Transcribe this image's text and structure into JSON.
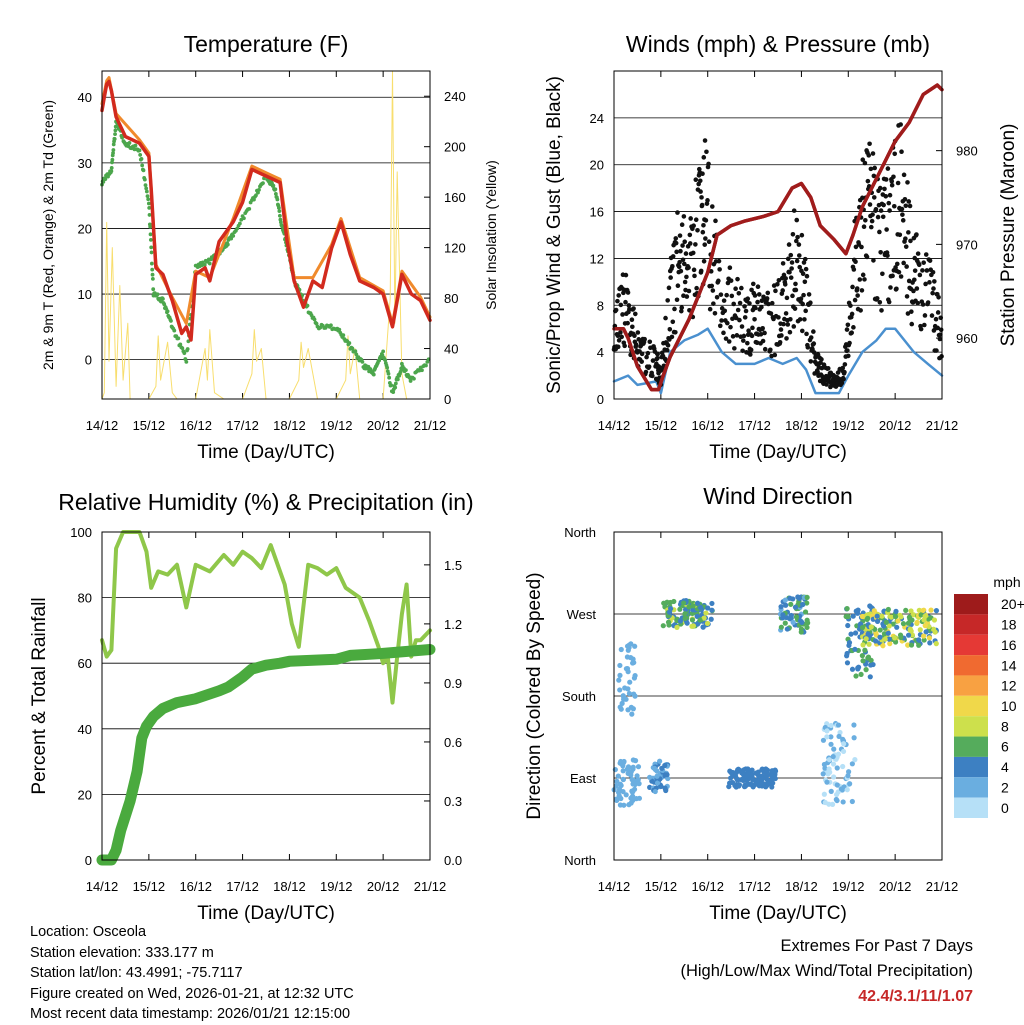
{
  "panels": {
    "temperature": {
      "title": "Temperature (F)",
      "ylabel_left": "2m & 9m T (Red, Orange) & 2m Td (Green)",
      "ylabel_right": "Solar Insolation (Yellow)",
      "xlabel": "Time (Day/UTC)"
    },
    "winds": {
      "title": "Winds (mph) & Pressure (mb)",
      "ylabel_left": "Sonic/Prop Wind & Gust (Blue, Black)",
      "ylabel_right": "Station Pressure (Maroon)",
      "xlabel": "Time (Day/UTC)"
    },
    "humidity": {
      "title": "Relative Humidity (%) & Precipitation (in)",
      "ylabel_left": "Percent & Total Rainfall",
      "xlabel": "Time (Day/UTC)"
    },
    "direction": {
      "title": "Wind Direction",
      "ylabel_left": "Direction (Colored By Speed)",
      "xlabel": "Time (Day/UTC)",
      "legend_title": "mph",
      "legend_labels": [
        "20+",
        "18",
        "16",
        "14",
        "12",
        "10",
        "8",
        "6",
        "4",
        "2",
        "0"
      ],
      "legend_colors": [
        "#9e1b1b",
        "#c62828",
        "#e53935",
        "#f06a30",
        "#f8a142",
        "#f0d84a",
        "#cde04c",
        "#55ac5c",
        "#3d80c2",
        "#6aaee0",
        "#b6e0f7"
      ]
    }
  },
  "footer": {
    "location": "Location: Osceola",
    "elevation": "Station elevation: 333.177 m",
    "latlon": "Station lat/lon: 43.4991; -75.7117",
    "created": "Figure created on Wed, 2026-01-21, at 12:32 UTC",
    "recent": "Most recent data timestamp: 2026/01/21 12:15:00",
    "extremes_title": "Extremes For Past 7 Days",
    "extremes_sub": "(High/Low/Max Wind/Total Precipitation)",
    "extremes_values": "42.4/3.1/11/1.07"
  },
  "chart_data": [
    {
      "type": "line",
      "title": "Temperature (F)",
      "xlabel": "Time (Day/UTC)",
      "ylabel": "2m & 9m T (Red, Orange) & 2m Td (Green)",
      "y2label": "Solar Insolation (Yellow)",
      "x_ticks": [
        "14/12",
        "15/12",
        "16/12",
        "17/12",
        "18/12",
        "19/12",
        "20/12",
        "21/12"
      ],
      "xlim": [
        0,
        7
      ],
      "ylim": [
        -6,
        44
      ],
      "y_ticks": [
        0,
        10,
        20,
        30,
        40
      ],
      "y2lim": [
        0,
        260
      ],
      "y2_ticks": [
        0,
        40,
        80,
        120,
        160,
        200,
        240
      ],
      "series": [
        {
          "name": "2m T",
          "color": "#d22a1e",
          "axis": "left",
          "x": [
            0,
            0.05,
            0.1,
            0.15,
            0.2,
            0.3,
            0.5,
            0.8,
            1.0,
            1.05,
            1.15,
            1.3,
            1.5,
            1.7,
            1.8,
            1.9,
            2.0,
            2.2,
            2.3,
            2.5,
            2.8,
            3.0,
            3.2,
            3.5,
            3.8,
            3.95,
            4.1,
            4.3,
            4.5,
            4.7,
            4.9,
            5.1,
            5.3,
            5.5,
            5.8,
            6.0,
            6.2,
            6.4,
            6.6,
            6.8,
            7.0
          ],
          "y": [
            38,
            40,
            42,
            42.4,
            41,
            37,
            34,
            33,
            31,
            26,
            14,
            13,
            9,
            4,
            5,
            3,
            13,
            14,
            12,
            18,
            21,
            24,
            29,
            28,
            27,
            18,
            12,
            8,
            12,
            11,
            17,
            21,
            16,
            12,
            11,
            10,
            5,
            13,
            10,
            9,
            6
          ]
        },
        {
          "name": "9m T",
          "color": "#f08a2c",
          "axis": "left",
          "x": [
            0,
            0.1,
            0.15,
            0.3,
            0.8,
            1.0,
            1.15,
            1.5,
            1.8,
            2.0,
            2.3,
            2.8,
            3.2,
            3.5,
            3.8,
            4.1,
            4.5,
            4.9,
            5.1,
            5.5,
            6.0,
            6.2,
            6.4,
            6.8,
            7.0
          ],
          "y": [
            39,
            42.5,
            43,
            37.5,
            33.5,
            31.5,
            14.5,
            9.5,
            5.5,
            13.5,
            12.5,
            21.5,
            29.5,
            28.5,
            27.5,
            12.5,
            12.5,
            17.5,
            21.5,
            12.5,
            10.5,
            5.5,
            13.5,
            9.5,
            6.5
          ]
        },
        {
          "name": "2m Td",
          "color": "#4ca64c",
          "axis": "left",
          "x": [
            0,
            0.2,
            0.3,
            0.5,
            0.8,
            1.0,
            1.1,
            1.3,
            1.5,
            1.8,
            2.0,
            2.3,
            2.6,
            2.8,
            3.2,
            3.5,
            3.7,
            3.85,
            4.0,
            4.1,
            4.3,
            4.6,
            5.0,
            5.3,
            5.6,
            5.8,
            6.0,
            6.2,
            6.4,
            6.6,
            7.0
          ],
          "y": [
            27,
            29,
            36,
            33,
            32,
            24,
            10,
            9,
            5,
            0,
            14,
            15,
            17,
            19,
            24,
            28,
            26,
            20,
            16,
            12,
            9,
            5,
            5,
            2,
            -1,
            -2,
            1,
            -5,
            -1,
            -3,
            0
          ]
        },
        {
          "name": "Solar Insolation",
          "color": "#f8de6e",
          "axis": "right",
          "x": [
            0,
            0.05,
            0.1,
            0.15,
            0.22,
            0.3,
            0.38,
            0.45,
            0.55,
            0.6,
            0.7,
            0.8,
            1.0,
            1.15,
            1.2,
            1.25,
            1.4,
            1.5,
            1.6,
            1.8,
            2.0,
            2.2,
            2.25,
            2.3,
            2.4,
            2.6,
            2.8,
            3.0,
            3.2,
            3.25,
            3.3,
            3.4,
            3.5,
            4.0,
            4.2,
            4.25,
            4.3,
            4.4,
            4.6,
            4.8,
            5.0,
            5.2,
            5.25,
            5.3,
            5.4,
            5.5,
            6.0,
            6.15,
            6.2,
            6.25,
            6.3,
            6.4,
            6.5,
            7.0
          ],
          "y": [
            0,
            5,
            140,
            30,
            120,
            10,
            90,
            15,
            60,
            0,
            0,
            0,
            0,
            10,
            50,
            15,
            45,
            5,
            0,
            0,
            0,
            40,
            15,
            55,
            5,
            0,
            0,
            0,
            20,
            55,
            30,
            40,
            0,
            0,
            15,
            45,
            25,
            40,
            0,
            0,
            0,
            15,
            50,
            20,
            40,
            0,
            0,
            80,
            260,
            60,
            180,
            20,
            0,
            0
          ]
        }
      ]
    },
    {
      "type": "line",
      "title": "Winds (mph) & Pressure (mb)",
      "xlabel": "Time (Day/UTC)",
      "ylabel": "Sonic/Prop Wind & Gust (Blue, Black)",
      "y2label": "Station Pressure (Maroon)",
      "x_ticks": [
        "14/12",
        "15/12",
        "16/12",
        "17/12",
        "18/12",
        "19/12",
        "20/12",
        "21/12"
      ],
      "xlim": [
        0,
        7
      ],
      "ylim": [
        0,
        28
      ],
      "y_ticks": [
        0,
        4,
        8,
        12,
        16,
        20,
        24
      ],
      "y2lim": [
        953.5,
        988.5
      ],
      "y2_ticks": [
        960,
        970,
        980
      ],
      "series": [
        {
          "name": "Wind (Blue)",
          "color": "#4a90cf",
          "axis": "left",
          "x": [
            0,
            0.3,
            0.5,
            0.9,
            1.0,
            1.2,
            1.5,
            1.8,
            2.0,
            2.3,
            2.6,
            3.0,
            3.3,
            3.6,
            3.9,
            4.1,
            4.3,
            4.5,
            4.8,
            5.0,
            5.3,
            5.6,
            5.8,
            6.0,
            6.2,
            6.4,
            6.7,
            7.0
          ],
          "y": [
            1.5,
            2,
            1.2,
            1.5,
            0.5,
            4,
            5,
            5.5,
            6,
            4,
            3,
            3,
            3.5,
            3,
            3.5,
            2.5,
            0.5,
            0.5,
            0.5,
            2,
            4,
            5,
            6,
            6,
            5,
            4,
            3,
            2
          ]
        },
        {
          "name": "Gust (Black)",
          "color": "#111111",
          "axis": "left",
          "x": [
            0,
            0.2,
            0.4,
            0.6,
            0.9,
            1.0,
            1.2,
            1.4,
            1.6,
            1.8,
            1.95,
            2.2,
            2.5,
            2.8,
            3.0,
            3.2,
            3.5,
            3.7,
            3.9,
            4.1,
            4.3,
            4.5,
            4.7,
            4.9,
            5.1,
            5.3,
            5.5,
            5.7,
            5.9,
            6.1,
            6.3,
            6.5,
            6.8,
            7.0
          ],
          "y": [
            5,
            8,
            6,
            4,
            3,
            2,
            8,
            12,
            10,
            14,
            16,
            10,
            8,
            6,
            7,
            6,
            7,
            9,
            12,
            8,
            3,
            2,
            1.5,
            2,
            10,
            14,
            16,
            13,
            14,
            17,
            12,
            10,
            8,
            5
          ]
        },
        {
          "name": "Station Pressure",
          "color": "#a01c1c",
          "axis": "right",
          "x": [
            0,
            0.2,
            0.3,
            0.5,
            0.8,
            0.95,
            1.05,
            1.2,
            1.6,
            2.0,
            2.2,
            2.5,
            2.8,
            3.2,
            3.5,
            3.8,
            4.0,
            4.2,
            4.4,
            4.7,
            4.95,
            5.1,
            5.3,
            5.5,
            5.8,
            6.0,
            6.3,
            6.6,
            6.9,
            7.0
          ],
          "y": [
            961,
            961,
            960,
            957,
            954.5,
            954.5,
            956,
            958,
            962,
            967,
            971,
            972,
            972.5,
            973,
            973.5,
            976,
            976.5,
            975,
            972,
            970.5,
            969,
            971,
            974,
            976,
            979,
            981,
            983,
            986,
            987,
            986.5
          ]
        }
      ]
    },
    {
      "type": "line",
      "title": "Relative Humidity (%) & Precipitation (in)",
      "xlabel": "Time (Day/UTC)",
      "ylabel": "Percent & Total Rainfall",
      "x_ticks": [
        "14/12",
        "15/12",
        "16/12",
        "17/12",
        "18/12",
        "19/12",
        "20/12",
        "21/12"
      ],
      "xlim": [
        0,
        7
      ],
      "ylim": [
        0,
        100
      ],
      "y_ticks": [
        0,
        20,
        40,
        60,
        80,
        100
      ],
      "y2lim": [
        0,
        1.667
      ],
      "y2_ticks": [
        0.0,
        0.3,
        0.6,
        0.9,
        1.2,
        1.5
      ],
      "series": [
        {
          "name": "Relative Humidity",
          "color": "#8fc74a",
          "axis": "left",
          "x": [
            0,
            0.1,
            0.2,
            0.3,
            0.45,
            0.6,
            0.8,
            0.95,
            1.05,
            1.2,
            1.4,
            1.6,
            1.8,
            2.0,
            2.3,
            2.6,
            2.8,
            3.0,
            3.2,
            3.4,
            3.6,
            3.75,
            3.9,
            4.05,
            4.2,
            4.4,
            4.6,
            4.8,
            5.0,
            5.2,
            5.5,
            5.7,
            5.9,
            6.0,
            6.1,
            6.2,
            6.3,
            6.4,
            6.5,
            6.6,
            6.7,
            6.8,
            7.0
          ],
          "y": [
            67,
            62,
            64,
            95,
            100,
            100,
            100,
            94,
            83,
            88,
            87,
            90,
            77,
            90,
            88,
            93,
            90,
            94,
            92,
            89,
            96,
            90,
            84,
            72,
            65,
            90,
            89,
            87,
            89,
            83,
            80,
            73,
            65,
            60,
            62,
            48,
            62,
            75,
            84,
            62,
            67,
            67,
            70
          ]
        },
        {
          "name": "Total Precipitation",
          "color": "#4aaa3e",
          "axis": "right",
          "x": [
            0,
            0.2,
            0.3,
            0.4,
            0.6,
            0.75,
            0.85,
            0.95,
            1.1,
            1.3,
            1.6,
            2.0,
            2.5,
            2.7,
            3.0,
            3.2,
            3.5,
            3.8,
            4.0,
            5.0,
            5.3,
            6.0,
            7.0
          ],
          "y": [
            0,
            0,
            0.05,
            0.15,
            0.3,
            0.45,
            0.62,
            0.68,
            0.73,
            0.77,
            0.8,
            0.82,
            0.86,
            0.88,
            0.93,
            0.97,
            0.99,
            1.0,
            1.01,
            1.02,
            1.04,
            1.05,
            1.07
          ]
        }
      ]
    },
    {
      "type": "scatter",
      "title": "Wind Direction",
      "xlabel": "Time (Day/UTC)",
      "ylabel": "Direction (Colored By Speed)",
      "x_ticks": [
        "14/12",
        "15/12",
        "16/12",
        "17/12",
        "18/12",
        "19/12",
        "20/12",
        "21/12"
      ],
      "y_ticks": [
        "North",
        "East",
        "South",
        "West",
        "North"
      ],
      "colorbar_label": "mph",
      "colorbar_ticks": [
        "0",
        "2",
        "4",
        "6",
        "8",
        "10",
        "12",
        "14",
        "16",
        "18",
        "20+"
      ],
      "clusters": [
        {
          "x": [
            0.0,
            0.55
          ],
          "dir": [
            60,
            110
          ],
          "speed": [
            1,
            3
          ]
        },
        {
          "x": [
            0.1,
            0.45
          ],
          "dir": [
            160,
            240
          ],
          "speed": [
            1,
            3
          ]
        },
        {
          "x": [
            0.75,
            1.15
          ],
          "dir": [
            75,
            110
          ],
          "speed": [
            2,
            4
          ]
        },
        {
          "x": [
            1.05,
            2.1
          ],
          "dir": [
            255,
            285
          ],
          "speed": [
            3,
            8
          ]
        },
        {
          "x": [
            2.45,
            3.45
          ],
          "dir": [
            80,
            100
          ],
          "speed": [
            3,
            5
          ]
        },
        {
          "x": [
            3.55,
            4.15
          ],
          "dir": [
            250,
            290
          ],
          "speed": [
            2,
            7
          ]
        },
        {
          "x": [
            4.45,
            5.15
          ],
          "dir": [
            60,
            150
          ],
          "speed": [
            0,
            2
          ]
        },
        {
          "x": [
            4.95,
            5.55
          ],
          "dir": [
            200,
            280
          ],
          "speed": [
            3,
            6
          ]
        },
        {
          "x": [
            5.3,
            6.9
          ],
          "dir": [
            235,
            275
          ],
          "speed": [
            3,
            10
          ]
        }
      ]
    }
  ]
}
